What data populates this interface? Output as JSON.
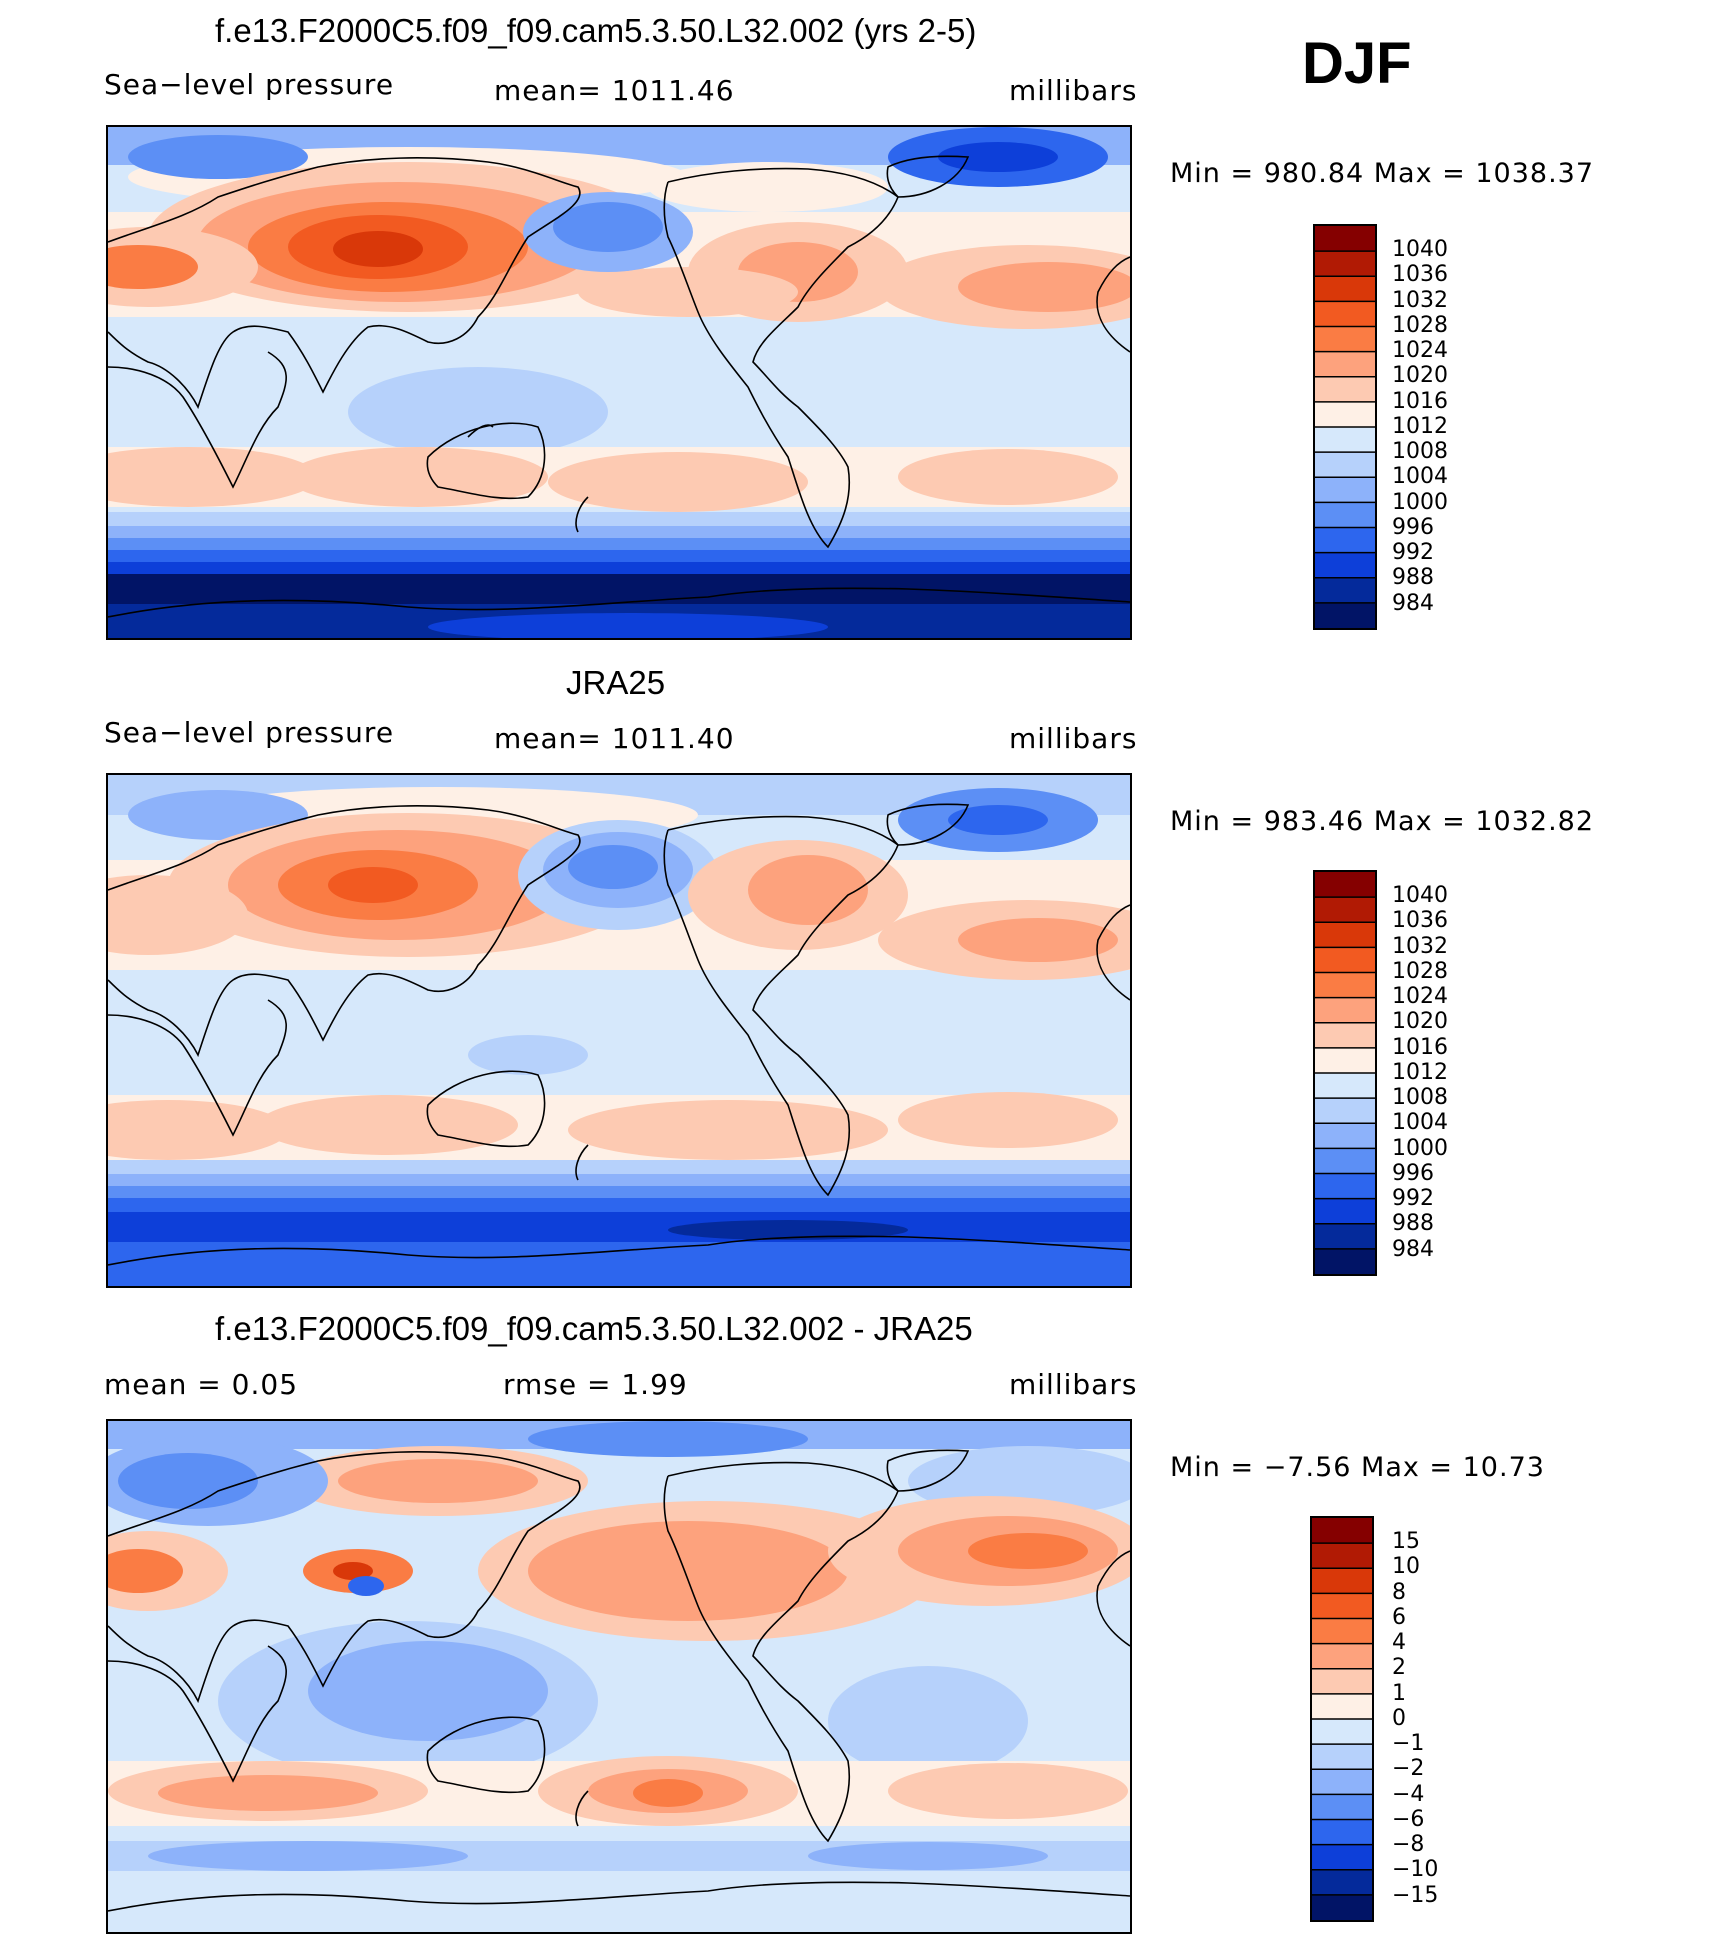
{
  "season": "DJF",
  "panels": [
    {
      "id": "model",
      "title": "f.e13.F2000C5.f09_f09.cam5.3.50.L32.002 (yrs 2-5)",
      "left_label": "Sea−level pressure",
      "center_label": "mean=  1011.46",
      "right_label": "millibars",
      "minmax": "Min  =  980.84  Max  =  1038.37",
      "colorbar_levels": [
        "1040",
        "1036",
        "1032",
        "1028",
        "1024",
        "1020",
        "1016",
        "1012",
        "1008",
        "1004",
        "1000",
        "996",
        "992",
        "988",
        "984"
      ],
      "colorbar_colors": [
        "#850000",
        "#b11a04",
        "#d93809",
        "#f25a21",
        "#fa7c44",
        "#fda27d",
        "#fdcab2",
        "#fef0e6",
        "#d6e8fb",
        "#b6d1fb",
        "#8db2fa",
        "#5c8ff5",
        "#2d66ee",
        "#0d3fd9",
        "#042a9b",
        "#011466"
      ]
    },
    {
      "id": "obs",
      "title": "JRA25",
      "left_label": "Sea−level pressure",
      "center_label": "mean=  1011.40",
      "right_label": "millibars",
      "minmax": "Min  =  983.46  Max  =  1032.82",
      "colorbar_levels": [
        "1040",
        "1036",
        "1032",
        "1028",
        "1024",
        "1020",
        "1016",
        "1012",
        "1008",
        "1004",
        "1000",
        "996",
        "992",
        "988",
        "984"
      ],
      "colorbar_colors": [
        "#850000",
        "#b11a04",
        "#d93809",
        "#f25a21",
        "#fa7c44",
        "#fda27d",
        "#fdcab2",
        "#fef0e6",
        "#d6e8fb",
        "#b6d1fb",
        "#8db2fa",
        "#5c8ff5",
        "#2d66ee",
        "#0d3fd9",
        "#042a9b",
        "#011466"
      ]
    },
    {
      "id": "diff",
      "title": "f.e13.F2000C5.f09_f09.cam5.3.50.L32.002 - JRA25",
      "left_label": "mean  =     0.05",
      "center_label": "rmse  =     1.99",
      "right_label": "millibars",
      "minmax": "Min  =    −7.56  Max  =    10.73",
      "colorbar_levels": [
        "15",
        "10",
        "8",
        "6",
        "4",
        "2",
        "1",
        "0",
        "−1",
        "−2",
        "−4",
        "−6",
        "−8",
        "−10",
        "−15"
      ],
      "colorbar_colors": [
        "#850000",
        "#b11a04",
        "#d93809",
        "#f25a21",
        "#fa7c44",
        "#fda27d",
        "#fdcab2",
        "#fef0e6",
        "#d6e8fb",
        "#b6d1fb",
        "#8db2fa",
        "#5c8ff5",
        "#2d66ee",
        "#0d3fd9",
        "#042a9b",
        "#011466"
      ]
    }
  ]
}
